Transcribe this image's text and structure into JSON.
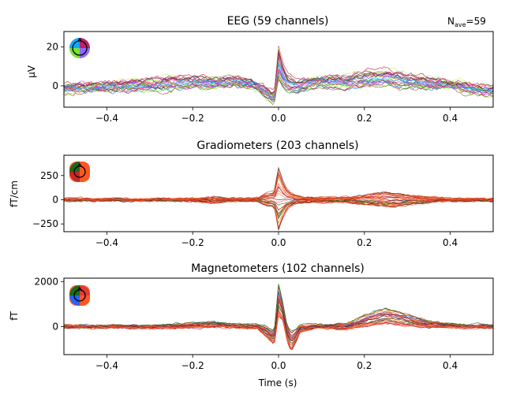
{
  "figure": {
    "nave_base": "N",
    "nave_sub": "ave",
    "nave_value": "=59",
    "xlabel": "Time (s)"
  },
  "chart_data": [
    {
      "type": "line",
      "title": "EEG (59 channels)",
      "ylabel": "µV",
      "xlim": [
        -0.5,
        0.5
      ],
      "ylim": [
        -11,
        28
      ],
      "xticks": [
        -0.4,
        -0.2,
        0.0,
        0.2,
        0.4
      ],
      "xtick_labels": [
        "−0.4",
        "−0.2",
        "0.0",
        "0.2",
        "0.4"
      ],
      "yticks": [
        0,
        20
      ],
      "ytick_labels": [
        "0",
        "20"
      ],
      "num_channels_drawn": 24,
      "palette": [
        "#1a6b1a",
        "#333333",
        "#8b0a3a",
        "#c2185b",
        "#e040fb",
        "#7c4dff",
        "#2979ff",
        "#00b0ff",
        "#76ff03",
        "#b2ff59",
        "#a0522d",
        "#ff4081"
      ],
      "envelope": {
        "x": [
          -0.5,
          -0.4,
          -0.3,
          -0.25,
          -0.2,
          -0.15,
          -0.1,
          -0.05,
          -0.03,
          -0.01,
          0.0,
          0.01,
          0.02,
          0.04,
          0.08,
          0.12,
          0.16,
          0.2,
          0.25,
          0.3,
          0.35,
          0.4,
          0.45,
          0.5
        ],
        "y": [
          -1,
          0,
          1,
          2,
          2,
          2,
          3,
          0,
          -3,
          -6,
          13,
          6,
          2,
          0,
          2,
          3,
          2,
          4,
          5,
          3,
          2,
          1,
          -1,
          -2
        ],
        "spread": [
          2,
          2,
          3,
          4,
          3,
          3,
          3,
          2,
          3,
          3,
          10,
          7,
          5,
          3,
          3,
          3,
          3,
          4,
          5,
          4,
          3,
          2,
          3,
          3
        ]
      },
      "seed": 11,
      "noise": 1.0
    },
    {
      "type": "line",
      "title": "Gradiometers (203 channels)",
      "ylabel": "fT/cm",
      "xlim": [
        -0.5,
        0.5
      ],
      "ylim": [
        -330,
        460
      ],
      "xticks": [
        -0.4,
        -0.2,
        0.0,
        0.2,
        0.4
      ],
      "xtick_labels": [
        "−0.4",
        "−0.2",
        "0.0",
        "0.2",
        "0.4"
      ],
      "yticks": [
        -250,
        0,
        250
      ],
      "ytick_labels": [
        "−250",
        "0",
        "250"
      ],
      "num_channels_drawn": 28,
      "palette": [
        "#1a6b1a",
        "#333333",
        "#8b0a3a",
        "#e53935",
        "#ff5722",
        "#ff7043",
        "#f4511e",
        "#d84315",
        "#ff6f00",
        "#c62828"
      ],
      "envelope": {
        "x": [
          -0.5,
          -0.4,
          -0.3,
          -0.2,
          -0.15,
          -0.1,
          -0.05,
          -0.03,
          -0.01,
          0.0,
          0.01,
          0.02,
          0.04,
          0.08,
          0.12,
          0.16,
          0.2,
          0.25,
          0.3,
          0.35,
          0.4,
          0.45,
          0.5
        ],
        "y": [
          0,
          0,
          0,
          0,
          0,
          0,
          0,
          0,
          0,
          0,
          0,
          0,
          0,
          0,
          0,
          0,
          0,
          0,
          0,
          0,
          0,
          0,
          0
        ],
        "spread": [
          8,
          8,
          8,
          10,
          30,
          15,
          15,
          60,
          80,
          340,
          200,
          100,
          40,
          20,
          25,
          25,
          50,
          80,
          55,
          25,
          15,
          10,
          10
        ]
      },
      "seed": 23,
      "noise": 8
    },
    {
      "type": "line",
      "title": "Magnetometers (102 channels)",
      "ylabel": "fT",
      "xlim": [
        -0.5,
        0.5
      ],
      "ylim": [
        -1250,
        2150
      ],
      "xticks": [
        -0.4,
        -0.2,
        0.0,
        0.2,
        0.4
      ],
      "xtick_labels": [
        "−0.4",
        "−0.2",
        "0.0",
        "0.2",
        "0.4"
      ],
      "yticks": [
        0,
        2000
      ],
      "ytick_labels": [
        "0",
        "2000"
      ],
      "num_channels_drawn": 26,
      "palette": [
        "#1a6b1a",
        "#333333",
        "#8b0a3a",
        "#e53935",
        "#ff5722",
        "#ff7043",
        "#f4511e",
        "#2962ff",
        "#ff6f00",
        "#c62828"
      ],
      "envelope": {
        "x": [
          -0.5,
          -0.4,
          -0.3,
          -0.2,
          -0.15,
          -0.1,
          -0.05,
          -0.03,
          -0.01,
          0.0,
          0.01,
          0.02,
          0.03,
          0.05,
          0.08,
          0.12,
          0.16,
          0.2,
          0.25,
          0.3,
          0.35,
          0.4,
          0.45,
          0.5
        ],
        "y": [
          0,
          0,
          0,
          50,
          100,
          20,
          0,
          -200,
          -500,
          1200,
          700,
          -300,
          -700,
          -100,
          0,
          0,
          0,
          250,
          500,
          300,
          100,
          50,
          0,
          0
        ],
        "spread": [
          40,
          40,
          60,
          100,
          120,
          60,
          80,
          200,
          300,
          700,
          400,
          350,
          450,
          150,
          80,
          80,
          120,
          250,
          350,
          250,
          120,
          80,
          60,
          60
        ]
      },
      "seed": 37,
      "noise": 40
    }
  ]
}
